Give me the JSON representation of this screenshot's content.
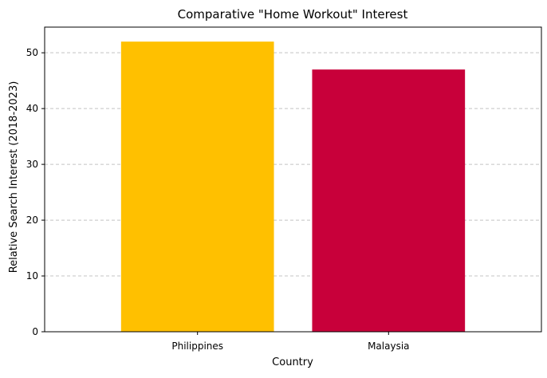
{
  "chart_data": {
    "type": "bar",
    "title": "Comparative \"Home Workout\" Interest",
    "xlabel": "Country",
    "ylabel": "Relative Search Interest (2018-2023)",
    "categories": [
      "Philippines",
      "Malaysia"
    ],
    "values": [
      52,
      47
    ],
    "colors": [
      "#FFC000",
      "#C8003A"
    ],
    "ylim": [
      0,
      54.6
    ],
    "yticks": [
      0,
      10,
      20,
      30,
      40,
      50
    ],
    "grid": "y-dashed"
  }
}
